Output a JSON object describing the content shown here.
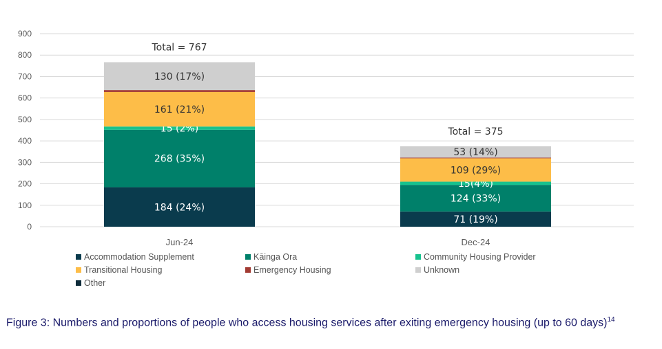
{
  "chart_data": {
    "type": "stacked-bar",
    "categories": [
      "Jun-24",
      "Dec-24"
    ],
    "ylim": [
      0,
      900
    ],
    "yticks": [
      0,
      100,
      200,
      300,
      400,
      500,
      600,
      700,
      800,
      900
    ],
    "grid": true,
    "legend_position": "bottom",
    "series": [
      {
        "name": "Accommodation Supplement",
        "color": "#0a3b4d",
        "values": [
          184,
          71
        ],
        "labels": [
          "184 (24%)",
          "71 (19%)"
        ]
      },
      {
        "name": "Kāinga Ora",
        "color": "#00806a",
        "values": [
          268,
          124
        ],
        "labels": [
          "268 (35%)",
          "124 (33%)"
        ]
      },
      {
        "name": "Community Housing Provider",
        "color": "#17c28e",
        "values": [
          15,
          15
        ],
        "labels": [
          "15 (2%)",
          "15(4%)"
        ]
      },
      {
        "name": "Transitional Housing",
        "color": "#fdbd48",
        "values": [
          161,
          109
        ],
        "labels": [
          "161 (21%)",
          "109 (29%)"
        ]
      },
      {
        "name": "Emergency Housing",
        "color": "#a23a32",
        "values": [
          9,
          3
        ],
        "labels": [
          "",
          ""
        ]
      },
      {
        "name": "Unknown",
        "color": "#cfcfcf",
        "values": [
          130,
          53
        ],
        "labels": [
          "130 (17%)",
          "53 (14%)"
        ]
      },
      {
        "name": "Other",
        "color": "#0e2b3a",
        "values": [
          0,
          0
        ],
        "labels": [
          "",
          ""
        ]
      }
    ],
    "totals": [
      "Total = 767",
      "Total = 375"
    ]
  },
  "caption": {
    "text": "Figure 3: Numbers and proportions of people who access housing services after exiting emergency housing (up to 60 days)",
    "footnote": "14"
  }
}
